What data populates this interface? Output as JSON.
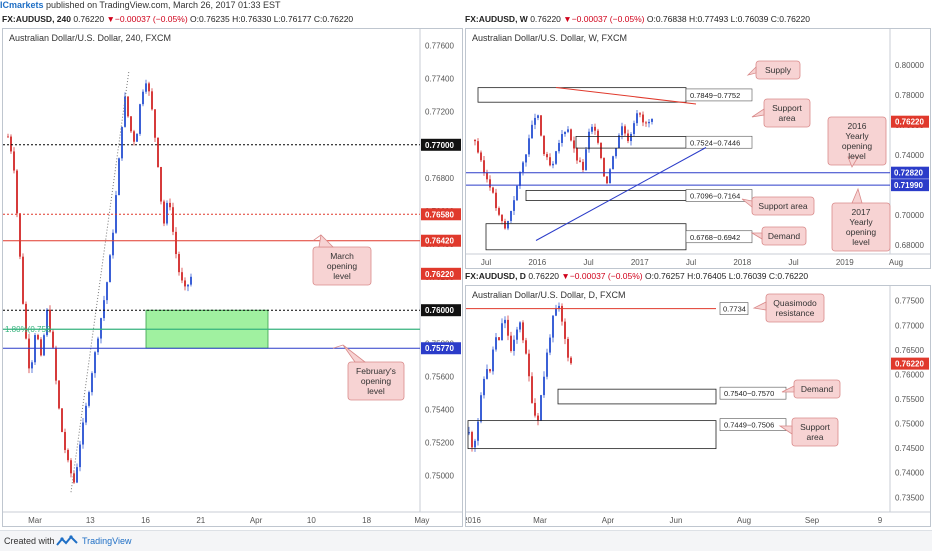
{
  "header": {
    "brand": "ICmarkets",
    "text": " published on TradingView.com, March 26, 2017 01:33 EST"
  },
  "footer": {
    "created_with": "Created with",
    "tradingview": "TradingView",
    "logo_icon": "tradingview-logo-icon"
  },
  "colors": {
    "up": "#3b60d6",
    "down": "#d63b3b",
    "red_line": "#e0392c",
    "blue_line": "#2b3cc9",
    "green_zone": "#8fef8f",
    "callout": "#f7d3d3"
  },
  "charts": [
    {
      "id": "h4",
      "ohlc": {
        "sym": "FX:AUDUSD",
        "tf": ", 240",
        "last": "0.76220",
        "chg": "−0.00037 (−0.05%)",
        "o": "O:0.76235",
        "h": "H:0.76330",
        "l": "L:0.76177",
        "c": "C:0.76220"
      },
      "chart_data": {
        "type": "candlestick",
        "title": "Australian Dollar/U.S. Dollar, 240, FXCM",
        "ylim": [
          0.7478,
          0.777
        ],
        "y_ticks": [
          "0.74800",
          "0.75000",
          "0.75200",
          "0.75400",
          "0.75600",
          "0.75800",
          "0.76000",
          "0.76200",
          "0.76400",
          "0.76600",
          "0.76800",
          "0.77000",
          "0.77200",
          "0.77400",
          "0.77600"
        ],
        "x_ticks": [
          "Mar",
          "13",
          "16",
          "21",
          "Apr",
          "10",
          "18",
          "May"
        ],
        "price_path": [
          0.7705,
          0.769,
          0.764,
          0.759,
          0.756,
          0.759,
          0.757,
          0.76,
          0.758,
          0.7545,
          0.752,
          0.7505,
          0.7495,
          0.752,
          0.754,
          0.756,
          0.758,
          0.76,
          0.762,
          0.765,
          0.769,
          0.773,
          0.771,
          0.77,
          0.773,
          0.774,
          0.772,
          0.769,
          0.765,
          0.767,
          0.764,
          0.762,
          0.7612,
          0.762
        ],
        "levels": [
          {
            "label": "0.77000",
            "value": 0.77,
            "style": "dotted",
            "color": "#000000"
          },
          {
            "label": "0.76580",
            "value": 0.7658,
            "style": "dotted",
            "color": "#e0392c"
          },
          {
            "label": "0.76420",
            "value": 0.7642,
            "style": "solid",
            "color": "#e0392c"
          },
          {
            "label": "0.76000",
            "value": 0.76,
            "style": "dotted",
            "color": "#000000"
          },
          {
            "label": "0.75770",
            "value": 0.7577,
            "style": "solid",
            "color": "#2b3cc9"
          }
        ],
        "last_label": "0.76220",
        "zone": {
          "from": 0.7577,
          "to": 0.76,
          "color": "#8fef8f"
        },
        "fib_label": "1.80%(0.758",
        "annotations": [
          {
            "text": "March opening level"
          },
          {
            "text": "February's opening level"
          }
        ]
      }
    },
    {
      "id": "w",
      "ohlc": {
        "sym": "FX:AUDUSD",
        "tf": ", W",
        "last": "0.76220",
        "chg": "−0.00037 (−0.05%)",
        "o": "O:0.76838",
        "h": "H:0.77493",
        "l": "L:0.76039",
        "c": "C:0.76220"
      },
      "chart_data": {
        "type": "candlestick",
        "title": "Australian Dollar/U.S. Dollar, W, FXCM",
        "ylim": [
          0.674,
          0.824
        ],
        "y_ticks": [
          "0.68000",
          "0.70000",
          "0.72000",
          "0.74000",
          "0.76000",
          "0.78000",
          "0.80000",
          "0.82000"
        ],
        "x_ticks": [
          "Jul",
          "2016",
          "Jul",
          "2017",
          "Jul",
          "2018",
          "Jul",
          "2019",
          "Aug"
        ],
        "price_path": [
          0.75,
          0.73,
          0.72,
          0.7,
          0.69,
          0.71,
          0.73,
          0.75,
          0.77,
          0.74,
          0.73,
          0.75,
          0.76,
          0.74,
          0.73,
          0.76,
          0.75,
          0.72,
          0.74,
          0.76,
          0.75,
          0.77,
          0.76,
          0.7622
        ],
        "levels": [
          {
            "label": "0.72820",
            "value": 0.7282,
            "style": "solid",
            "color": "#2b3cc9"
          },
          {
            "label": "0.71990",
            "value": 0.7199,
            "style": "solid",
            "color": "#2b3cc9"
          }
        ],
        "last_label": "0.76220",
        "zones": [
          {
            "label": "0.7849−0.7752",
            "from": 0.7752,
            "to": 0.7849
          },
          {
            "label": "0.7524−0.7446",
            "from": 0.7446,
            "to": 0.7524
          },
          {
            "label": "0.7096−0.7164",
            "from": 0.7096,
            "to": 0.7164
          },
          {
            "label": "0.6768−0.6942",
            "from": 0.6768,
            "to": 0.6942
          }
        ],
        "annotations": [
          {
            "text": "Supply"
          },
          {
            "text": "Support area"
          },
          {
            "text": "2016 Yearly opening level"
          },
          {
            "text": "Support area"
          },
          {
            "text": "2017 Yearly opening level"
          },
          {
            "text": "Demand"
          }
        ]
      }
    },
    {
      "id": "d",
      "ohlc": {
        "sym": "FX:AUDUSD",
        "tf": ", D",
        "last": "0.76220",
        "chg": "−0.00037 (−0.05%)",
        "o": "O:0.76257",
        "h": "H:0.76405",
        "l": "L:0.76039",
        "c": "C:0.76220"
      },
      "chart_data": {
        "type": "candlestick",
        "title": "Australian Dollar/U.S. Dollar, D, FXCM",
        "ylim": [
          0.732,
          0.778
        ],
        "y_ticks": [
          "0.73500",
          "0.74000",
          "0.74500",
          "0.75000",
          "0.75500",
          "0.76000",
          "0.76500",
          "0.77000",
          "0.77500"
        ],
        "x_ticks": [
          "2016",
          "Mar",
          "Apr",
          "Jun",
          "Aug",
          "Sep",
          "9"
        ],
        "price_path": [
          0.748,
          0.745,
          0.75,
          0.756,
          0.762,
          0.76,
          0.768,
          0.766,
          0.772,
          0.769,
          0.764,
          0.768,
          0.771,
          0.766,
          0.76,
          0.754,
          0.75,
          0.756,
          0.762,
          0.768,
          0.772,
          0.774,
          0.77,
          0.765,
          0.7622
        ],
        "levels": [
          {
            "label": "0.7734",
            "value": 0.7734,
            "style": "solid",
            "color": "#e0392c"
          }
        ],
        "last_label": "0.76220",
        "zones": [
          {
            "label": "0.7540−0.7570",
            "from": 0.754,
            "to": 0.757
          },
          {
            "label": "0.7449−0.7506",
            "from": 0.7449,
            "to": 0.7506
          }
        ],
        "annotations": [
          {
            "text": "Quasimodo resistance"
          },
          {
            "text": "Demand"
          },
          {
            "text": "Support area"
          }
        ]
      }
    }
  ]
}
